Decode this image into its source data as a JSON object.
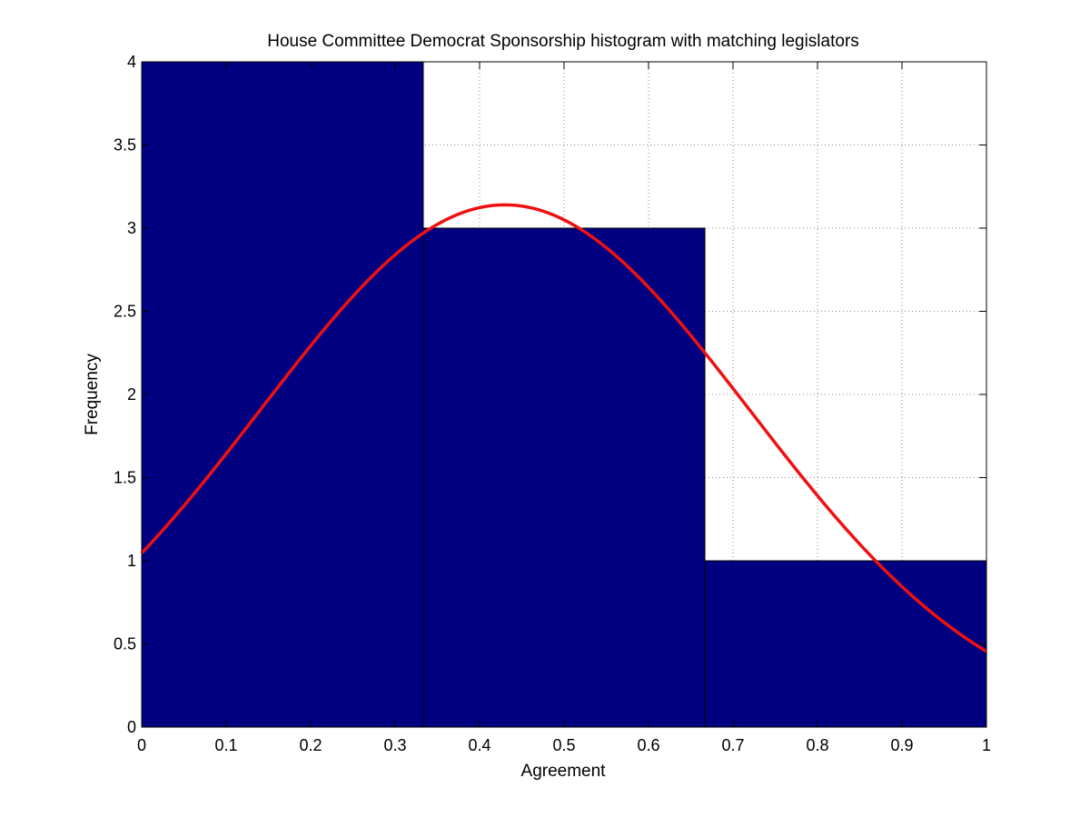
{
  "chart_data": {
    "type": "bar",
    "title": "House Committee Democrat Sponsorship histogram with matching legislators",
    "xlabel": "Agreement",
    "ylabel": "Frequency",
    "xlim": [
      0,
      1
    ],
    "ylim": [
      0,
      4
    ],
    "grid": true,
    "x_ticks": [
      "0",
      "0.1",
      "0.2",
      "0.3",
      "0.4",
      "0.5",
      "0.6",
      "0.7",
      "0.8",
      "0.9",
      "1"
    ],
    "y_ticks": [
      "0",
      "0.5",
      "1",
      "1.5",
      "2",
      "2.5",
      "3",
      "3.5",
      "4"
    ],
    "bins": [
      {
        "x0": 0,
        "x1": 0.3333,
        "count": 4
      },
      {
        "x0": 0.3333,
        "x1": 0.6667,
        "count": 3
      },
      {
        "x0": 0.6667,
        "x1": 1,
        "count": 1
      }
    ],
    "fit_curve": {
      "type": "normal",
      "mean": 0.43,
      "sd": 0.29,
      "peak": 3.14,
      "x_range": [
        0,
        1
      ]
    },
    "colors": {
      "bar_fill": "#000080",
      "bar_edge": "#000000",
      "curve": "#ee1111",
      "grid": "#888888"
    }
  }
}
